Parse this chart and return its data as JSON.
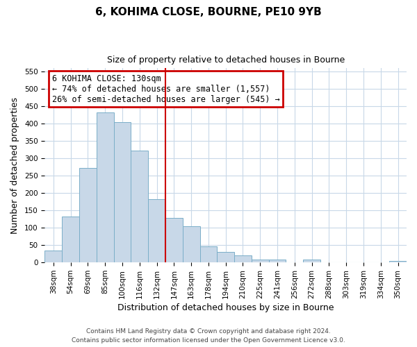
{
  "title": "6, KOHIMA CLOSE, BOURNE, PE10 9YB",
  "subtitle": "Size of property relative to detached houses in Bourne",
  "xlabel": "Distribution of detached houses by size in Bourne",
  "ylabel": "Number of detached properties",
  "categories": [
    "38sqm",
    "54sqm",
    "69sqm",
    "85sqm",
    "100sqm",
    "116sqm",
    "132sqm",
    "147sqm",
    "163sqm",
    "178sqm",
    "194sqm",
    "210sqm",
    "225sqm",
    "241sqm",
    "256sqm",
    "272sqm",
    "288sqm",
    "303sqm",
    "319sqm",
    "334sqm",
    "350sqm"
  ],
  "values": [
    35,
    133,
    272,
    433,
    405,
    322,
    183,
    128,
    105,
    47,
    30,
    20,
    8,
    8,
    0,
    8,
    0,
    0,
    0,
    0,
    5
  ],
  "bar_color": "#c8d8e8",
  "bar_edge_color": "#7aaec8",
  "vline_index": 6,
  "vline_color": "#cc0000",
  "annotation_title": "6 KOHIMA CLOSE: 130sqm",
  "annotation_line1": "← 74% of detached houses are smaller (1,557)",
  "annotation_line2": "26% of semi-detached houses are larger (545) →",
  "annotation_box_color": "#cc0000",
  "ylim": [
    0,
    560
  ],
  "yticks": [
    0,
    50,
    100,
    150,
    200,
    250,
    300,
    350,
    400,
    450,
    500,
    550
  ],
  "footnote1": "Contains HM Land Registry data © Crown copyright and database right 2024.",
  "footnote2": "Contains public sector information licensed under the Open Government Licence v3.0.",
  "bg_color": "#ffffff",
  "grid_color": "#c8d8e8",
  "title_fontsize": 11,
  "subtitle_fontsize": 9,
  "xlabel_fontsize": 9,
  "ylabel_fontsize": 9,
  "tick_fontsize": 7.5,
  "annot_fontsize": 8.5
}
